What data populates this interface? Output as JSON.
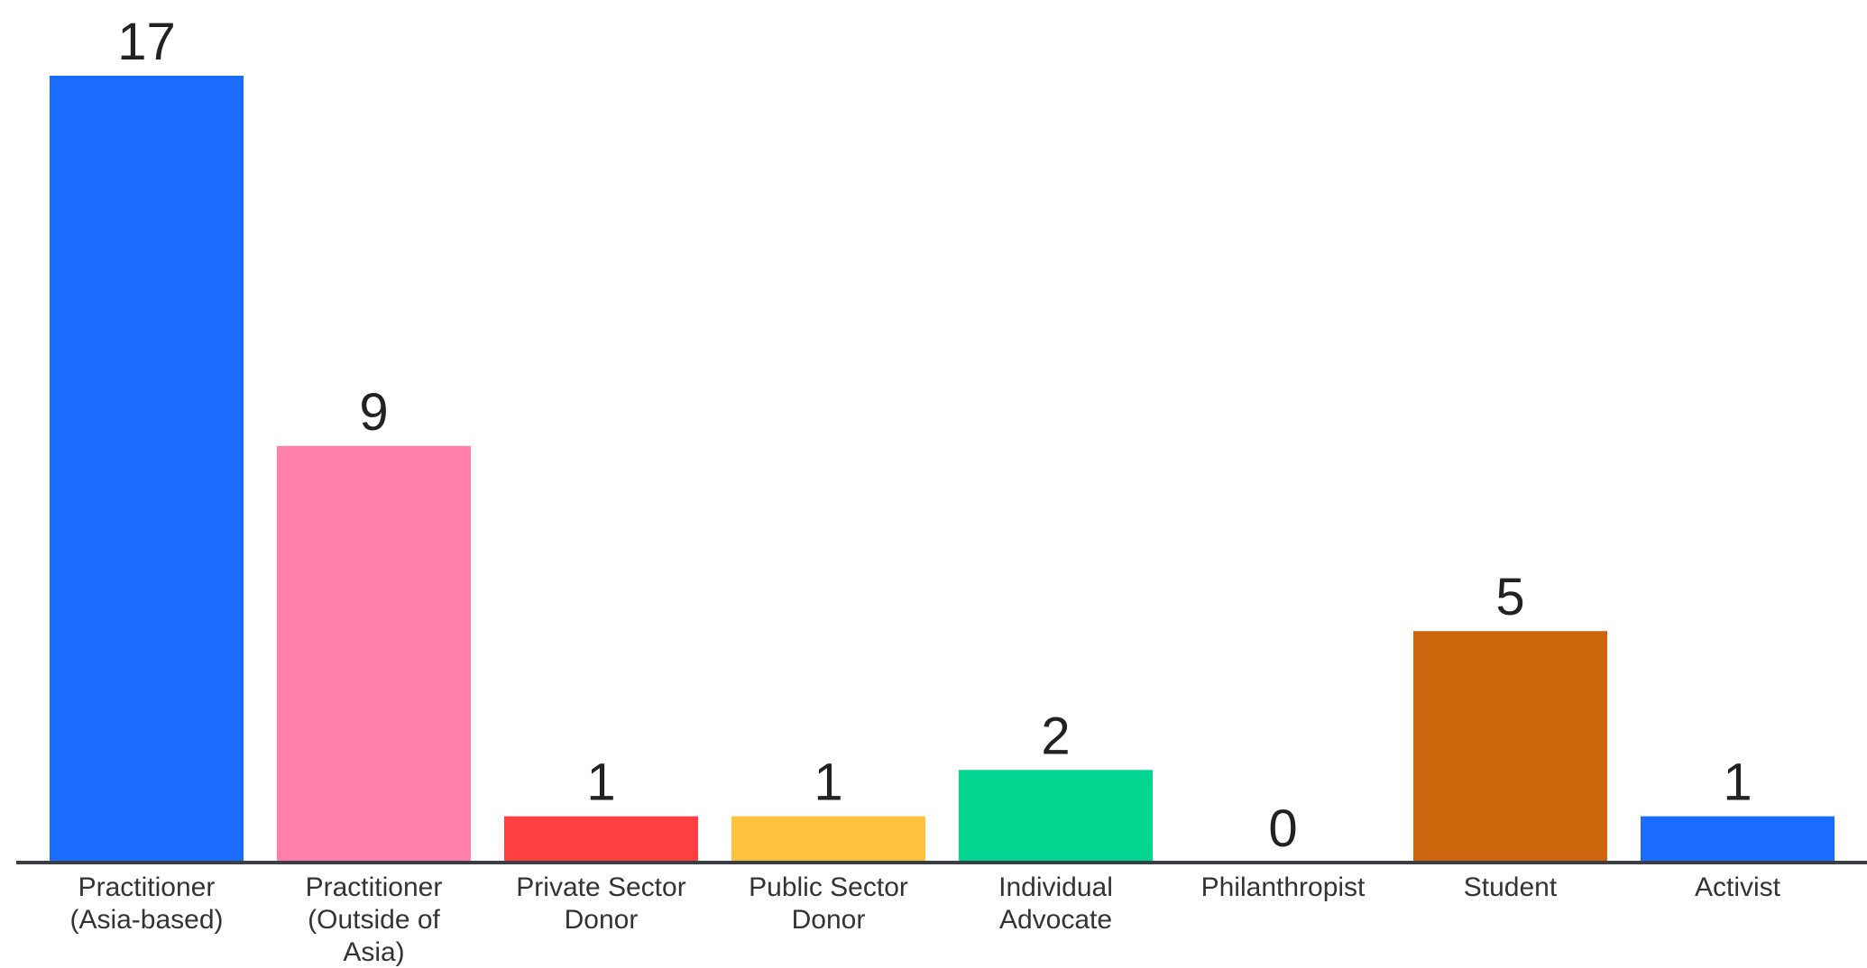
{
  "chart_data": {
    "type": "bar",
    "categories": [
      [
        "Practitioner",
        "(Asia-based)"
      ],
      [
        "Practitioner",
        "(Outside of",
        "Asia)"
      ],
      [
        "Private Sector",
        "Donor"
      ],
      [
        "Public Sector",
        "Donor"
      ],
      [
        "Individual",
        "Advocate"
      ],
      [
        "Philanthropist"
      ],
      [
        "Student"
      ],
      [
        "Activist"
      ]
    ],
    "values": [
      17,
      9,
      1,
      1,
      2,
      0,
      5,
      1
    ],
    "colors": [
      "#1a6cff",
      "#ff7faa",
      "#ff4040",
      "#ffc23c",
      "#00d68f",
      "#888888",
      "#cc650b",
      "#1a6cff"
    ],
    "title": "",
    "xlabel": "",
    "ylabel": "",
    "ylim": [
      0,
      17
    ],
    "grid": false,
    "legend": "none",
    "axis_color": "#3a3f47"
  }
}
